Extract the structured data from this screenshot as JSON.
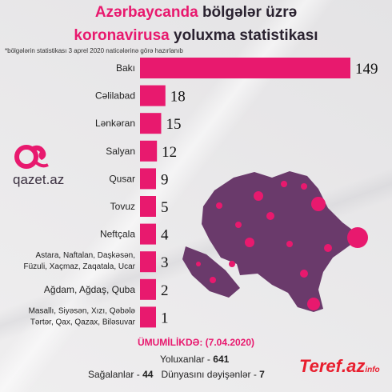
{
  "header": {
    "title_line1_accent": "Azərbaycanda",
    "title_line1_rest": "bölgələr üzrə",
    "title_line2_accent": "koronavirusa",
    "title_line2_rest": "yoluxma statistikası",
    "note": "*bölgələrin statistikası 3 aprel 2020 naticələrinə görə hazırlanıb"
  },
  "logo": {
    "text": "qazet.az",
    "icon": "qazet-logo-icon"
  },
  "colors": {
    "accent": "#e8196e",
    "bar": "#e8196e",
    "map": "#6a3a6b",
    "map_dots": "#e8196e"
  },
  "chart_data": {
    "type": "bar",
    "orientation": "horizontal",
    "categories": [
      [
        "Bakı"
      ],
      [
        "Cəlilabad"
      ],
      [
        "Lənkəran"
      ],
      [
        "Salyan"
      ],
      [
        "Qusar"
      ],
      [
        "Tovuz"
      ],
      [
        "Neftçala"
      ],
      [
        "Astara, Naftalan, Daşkəsən,",
        "Füzuli, Xaçmaz, Zaqatala, Ucar"
      ],
      [
        "Ağdam, Ağdaş, Quba"
      ],
      [
        "Masallı, Siyəsən, Xızı, Qəbələ",
        "Tərtər, Qax, Qazax, Biləsuvar"
      ]
    ],
    "values": [
      149,
      18,
      15,
      12,
      9,
      5,
      4,
      3,
      2,
      1
    ],
    "title": "Azərbaycanda bölgələr üzrə koronavirusa yoluxma statistikası"
  },
  "summary": {
    "title": "ÜMUMİLİKDƏ: (7.04.2020)",
    "infected_label": "Yoluxanlar -",
    "infected_value": "641",
    "recovered_label": "Sağalanlar -",
    "recovered_value": "44",
    "deaths_label": "Dünyasını dəyişənlər -",
    "deaths_value": "7"
  },
  "watermark": {
    "main": "Teref.az",
    "sub": "info"
  }
}
